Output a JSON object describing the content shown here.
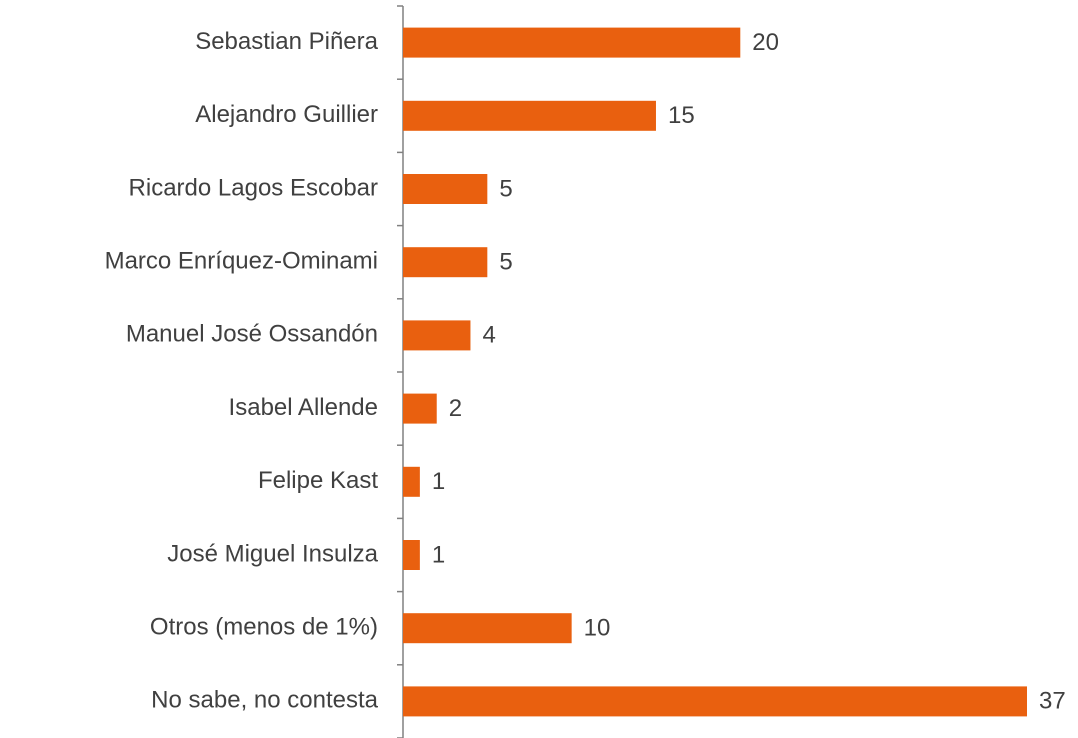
{
  "chart_data": {
    "type": "bar",
    "orientation": "horizontal",
    "categories": [
      "Sebastian Piñera",
      "Alejandro Guillier",
      "Ricardo Lagos Escobar",
      "Marco Enríquez-Ominami",
      "Manuel José Ossandón",
      "Isabel Allende",
      "Felipe Kast",
      "José Miguel Insulza",
      "Otros (menos de 1%)",
      "No sabe, no contesta"
    ],
    "values": [
      20,
      15,
      5,
      5,
      4,
      2,
      1,
      1,
      10,
      37
    ],
    "color": "#e9600f"
  }
}
